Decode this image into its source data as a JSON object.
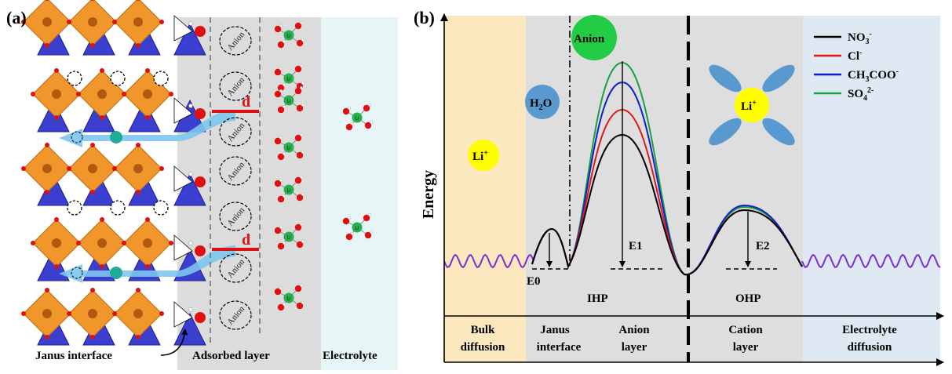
{
  "panel_a": {
    "tag": "(a)",
    "anion_label": "Anion",
    "d_label": "d",
    "li_small": "Li",
    "janus_interface": "Janus interface",
    "adsorbed_layer": "Adsorbed layer",
    "electrolyte": "Electrolyte",
    "colors": {
      "octahedron": "#f0962a",
      "tetrahedron": "#3a3fd0",
      "oxygen": "#e01010",
      "arrow": "#7cc6ee",
      "li_green": "#22b14c",
      "adsorbed_bg": "#dcdcdc",
      "electrolyte_bg": "#e6f6f6",
      "d_red": "#dd1111"
    }
  },
  "panel_b": {
    "tag": "(b)",
    "y_label": "Energy",
    "bubble_anion": "Anion",
    "bubble_h2o_main": "H",
    "bubble_h2o_sub": "2",
    "bubble_h2o_end": "O",
    "bubble_li": "Li",
    "bubble_li_sup": "+",
    "legend": [
      {
        "main": "NO",
        "sub": "3",
        "sup": "-",
        "color": "#000000"
      },
      {
        "main": "Cl",
        "sub": "",
        "sup": "-",
        "color": "#e01818"
      },
      {
        "main": "CH",
        "sub": "3",
        "main2": "COO",
        "sup": "-",
        "color": "#1020c8"
      },
      {
        "main": "SO",
        "sub": "4",
        "sup": "2-",
        "color": "#18a040"
      }
    ],
    "e0": "E0",
    "e1": "E1",
    "e2": "E2",
    "ihp": "IHP",
    "ohp": "OHP",
    "regions": [
      {
        "line1": "Bulk",
        "line2": "diffusion"
      },
      {
        "line1": "Janus",
        "line2": "interface"
      },
      {
        "line1": "Anion",
        "line2": "layer"
      },
      {
        "line1": "Cation",
        "line2": "layer"
      },
      {
        "line1": "Electrolyte",
        "line2": "diffusion"
      }
    ],
    "colors": {
      "bulk_bg": "#fbe8bf",
      "middle_bg": "#dedede",
      "electrolyte_bg": "#dfe9f3",
      "wave": "#7b2fd0",
      "anion_bubble": "#22cc44",
      "h2o_bubble": "#5a98d0",
      "li_bubble": "#ffff00",
      "petal": "#5a98d0"
    }
  }
}
